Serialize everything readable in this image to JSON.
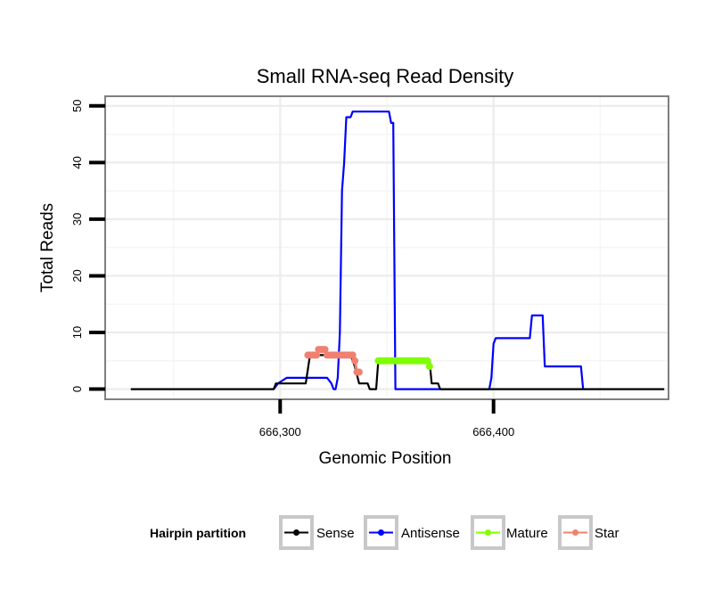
{
  "chart_data": {
    "type": "line",
    "title": "Small RNA-seq Read Density",
    "xlabel": "Genomic Position",
    "ylabel": "Total Reads",
    "xlim": [
      666218,
      666482
    ],
    "ylim": [
      -1.8,
      51.7
    ],
    "xticks": [
      666300,
      666400
    ],
    "xtick_labels": [
      "666,300",
      "666,400"
    ],
    "yticks": [
      0,
      10,
      20,
      30,
      40,
      50
    ],
    "ytick_labels": [
      "0",
      "10",
      "20",
      "30",
      "40",
      "50"
    ],
    "grid": true,
    "legend": {
      "title": "Hairpin partition",
      "position": "bottom",
      "entries": [
        "Sense",
        "Antisense",
        "Mature",
        "Star"
      ]
    },
    "series": [
      {
        "name": "Sense",
        "color": "#000000",
        "style": "line",
        "points": [
          [
            666230,
            0
          ],
          [
            666297,
            0
          ],
          [
            666298,
            1
          ],
          [
            666312,
            1
          ],
          [
            666314,
            6
          ],
          [
            666333,
            6
          ],
          [
            666335,
            4
          ],
          [
            666337,
            1
          ],
          [
            666341,
            1
          ],
          [
            666342,
            0
          ],
          [
            666345,
            0
          ],
          [
            666346,
            5
          ],
          [
            666370,
            5
          ],
          [
            666371,
            1
          ],
          [
            666374,
            1
          ],
          [
            666375,
            0
          ],
          [
            666480,
            0
          ]
        ]
      },
      {
        "name": "Antisense",
        "color": "#0000ff",
        "style": "line",
        "points": [
          [
            666297,
            0
          ],
          [
            666299,
            1
          ],
          [
            666303,
            2
          ],
          [
            666322,
            2
          ],
          [
            666324,
            1
          ],
          [
            666325,
            0
          ],
          [
            666326,
            0
          ],
          [
            666327,
            2
          ],
          [
            666328,
            10
          ],
          [
            666329,
            35
          ],
          [
            666330,
            40
          ],
          [
            666331,
            48
          ],
          [
            666333,
            48
          ],
          [
            666334,
            49
          ],
          [
            666351,
            49
          ],
          [
            666352,
            47
          ],
          [
            666353,
            47
          ],
          [
            666354,
            0
          ],
          [
            666369,
            0
          ],
          [
            666370,
            0
          ],
          [
            666398,
            0
          ],
          [
            666399,
            2
          ],
          [
            666400,
            8
          ],
          [
            666401,
            9
          ],
          [
            666417,
            9
          ],
          [
            666418,
            13
          ],
          [
            666423,
            13
          ],
          [
            666424,
            4
          ],
          [
            666441,
            4
          ],
          [
            666442,
            0
          ]
        ]
      },
      {
        "name": "Mature",
        "color": "#80ff00",
        "style": "points",
        "points": [
          [
            666346,
            5
          ],
          [
            666347,
            5
          ],
          [
            666348,
            5
          ],
          [
            666349,
            5
          ],
          [
            666350,
            5
          ],
          [
            666351,
            5
          ],
          [
            666352,
            5
          ],
          [
            666353,
            5
          ],
          [
            666354,
            5
          ],
          [
            666355,
            5
          ],
          [
            666356,
            5
          ],
          [
            666357,
            5
          ],
          [
            666358,
            5
          ],
          [
            666359,
            5
          ],
          [
            666360,
            5
          ],
          [
            666361,
            5
          ],
          [
            666362,
            5
          ],
          [
            666363,
            5
          ],
          [
            666364,
            5
          ],
          [
            666365,
            5
          ],
          [
            666366,
            5
          ],
          [
            666367,
            5
          ],
          [
            666368,
            5
          ],
          [
            666369,
            5
          ],
          [
            666370,
            4
          ]
        ]
      },
      {
        "name": "Star",
        "color": "#f08070",
        "style": "points",
        "points": [
          [
            666313,
            6
          ],
          [
            666314,
            6
          ],
          [
            666315,
            6
          ],
          [
            666316,
            6
          ],
          [
            666317,
            6
          ],
          [
            666318,
            7
          ],
          [
            666319,
            7
          ],
          [
            666320,
            7
          ],
          [
            666321,
            7
          ],
          [
            666322,
            6
          ],
          [
            666323,
            6
          ],
          [
            666324,
            6
          ],
          [
            666325,
            6
          ],
          [
            666326,
            6
          ],
          [
            666327,
            6
          ],
          [
            666328,
            6
          ],
          [
            666329,
            6
          ],
          [
            666330,
            6
          ],
          [
            666331,
            6
          ],
          [
            666332,
            6
          ],
          [
            666333,
            6
          ],
          [
            666334,
            6
          ],
          [
            666335,
            5
          ],
          [
            666336,
            3
          ],
          [
            666337,
            3
          ]
        ]
      }
    ]
  }
}
